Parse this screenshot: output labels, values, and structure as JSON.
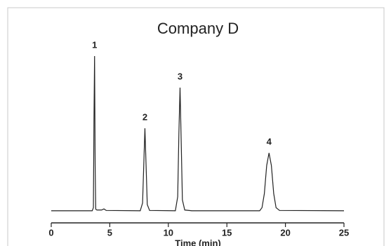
{
  "chart_data": {
    "type": "line",
    "title": "Company D",
    "x_label": "Time (min)",
    "xlim": [
      0,
      25
    ],
    "xticks": [
      0,
      5,
      10,
      15,
      20,
      25
    ],
    "ylim": [
      0,
      100
    ],
    "color": "#222222",
    "series": [
      {
        "name": null,
        "color": "#222222",
        "x": [
          0,
          2,
          3.5,
          3.6,
          3.65,
          3.7,
          3.75,
          3.8,
          3.9,
          4.3,
          4.5,
          4.7,
          7.6,
          7.8,
          7.9,
          8.0,
          8.1,
          8.2,
          8.4,
          10.6,
          10.8,
          10.9,
          11.0,
          11.1,
          11.2,
          11.4,
          12,
          17.8,
          18.0,
          18.2,
          18.4,
          18.6,
          18.8,
          19.0,
          19.2,
          19.5,
          25
        ],
        "values": [
          1,
          1,
          1,
          3,
          60,
          100,
          30,
          2,
          1.5,
          1.5,
          2.2,
          1.2,
          1,
          6,
          30,
          53.8,
          30,
          5,
          1.2,
          1,
          10,
          50,
          79.8,
          45,
          8,
          1.5,
          1,
          1,
          3,
          12,
          30,
          38,
          30,
          12,
          3,
          1.2,
          1
        ]
      }
    ],
    "annotations": [
      {
        "text": "1",
        "x": 3.7
      },
      {
        "text": "2",
        "x": 8.0
      },
      {
        "text": "3",
        "x": 11.0
      },
      {
        "text": "4",
        "x": 18.6
      }
    ]
  }
}
